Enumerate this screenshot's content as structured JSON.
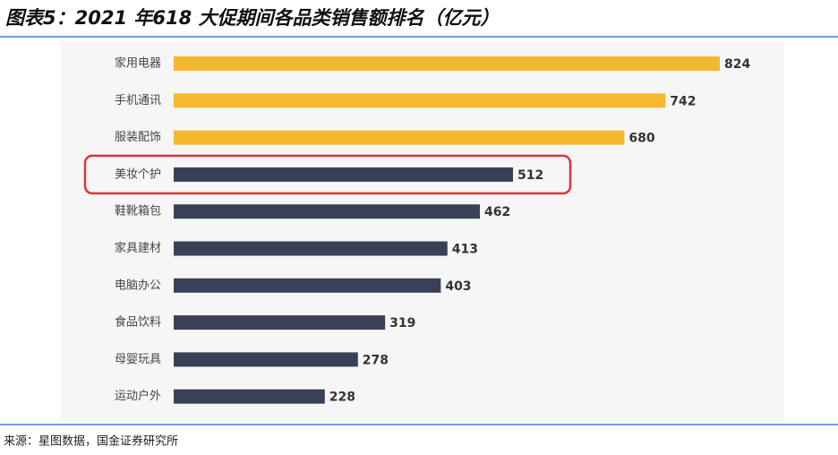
{
  "chart_data": {
    "type": "hbar",
    "title": "图表5：2021 年618 大促期间各品类销售额排名（亿元）",
    "categories": [
      "家用电器",
      "手机通讯",
      "服装配饰",
      "美妆个护",
      "鞋靴箱包",
      "家具建材",
      "电脑办公",
      "食品饮料",
      "母婴玩具",
      "运动户外"
    ],
    "values": [
      824,
      742,
      680,
      512,
      462,
      413,
      403,
      319,
      278,
      228
    ],
    "colors": [
      "#f5b630",
      "#f5b630",
      "#f5b630",
      "#3a4157",
      "#3a4157",
      "#3a4157",
      "#3a4157",
      "#3a4157",
      "#3a4157",
      "#3a4157"
    ],
    "highlight_index": 3,
    "source": "来源：星图数据，国金证券研究所"
  }
}
